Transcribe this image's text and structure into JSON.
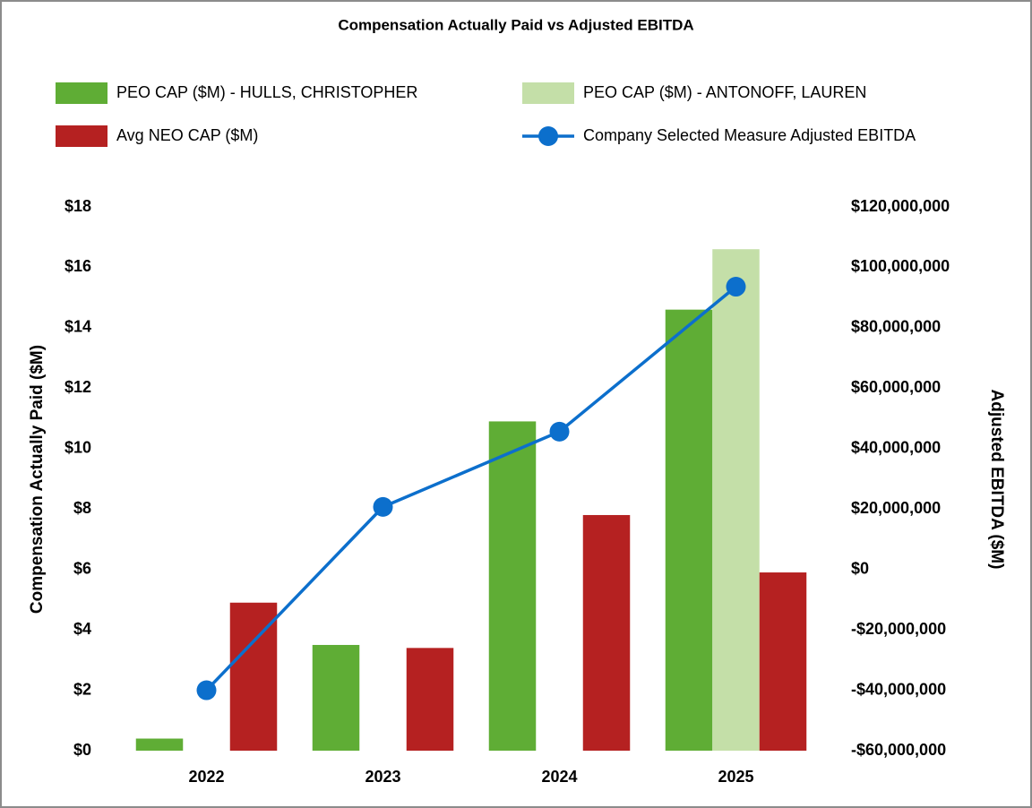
{
  "chart_data": {
    "type": "bar",
    "title": "Compensation Actually Paid vs Adjusted EBITDA",
    "y_label": "Compensation Actually Paid ($M)",
    "y2_label": "Adjusted EBITDA ($M)",
    "categories": [
      "2022",
      "2023",
      "2024",
      "2025"
    ],
    "series": [
      {
        "name": "PEO CAP ($M) - HULLS, CHRISTOPHER",
        "type": "bar",
        "color": "#5fad35",
        "values": [
          0.4,
          3.5,
          10.9,
          14.6
        ]
      },
      {
        "name": "PEO CAP ($M) - ANTONOFF, LAUREN",
        "type": "bar",
        "color": "#c4dfa8",
        "values": [
          null,
          null,
          null,
          16.6
        ]
      },
      {
        "name": "Avg NEO CAP ($M)",
        "type": "bar",
        "color": "#b52121",
        "values": [
          4.9,
          3.4,
          7.8,
          5.9
        ]
      },
      {
        "name": "Company Selected Measure Adjusted EBITDA",
        "type": "line",
        "axis": "y2",
        "color": "#0c6fcc",
        "values": [
          -40000000,
          20700000,
          45600000,
          93600000
        ]
      }
    ],
    "ylim": [
      0,
      18
    ],
    "yticks": [
      {
        "value": 0,
        "label": "$0"
      },
      {
        "value": 2,
        "label": "$2"
      },
      {
        "value": 4,
        "label": "$4"
      },
      {
        "value": 6,
        "label": "$6"
      },
      {
        "value": 8,
        "label": "$8"
      },
      {
        "value": 10,
        "label": "$10"
      },
      {
        "value": 12,
        "label": "$12"
      },
      {
        "value": 14,
        "label": "$14"
      },
      {
        "value": 16,
        "label": "$16"
      },
      {
        "value": 18,
        "label": "$18"
      }
    ],
    "y2lim": [
      -60000000,
      120000000
    ],
    "y2ticks": [
      {
        "value": -60000000,
        "label": "-$60,000,000"
      },
      {
        "value": -40000000,
        "label": "-$40,000,000"
      },
      {
        "value": -20000000,
        "label": "-$20,000,000"
      },
      {
        "value": 0,
        "label": "$0"
      },
      {
        "value": 20000000,
        "label": "$20,000,000"
      },
      {
        "value": 40000000,
        "label": "$40,000,000"
      },
      {
        "value": 60000000,
        "label": "$60,000,000"
      },
      {
        "value": 80000000,
        "label": "$80,000,000"
      },
      {
        "value": 100000000,
        "label": "$100,000,000"
      },
      {
        "value": 120000000,
        "label": "$120,000,000"
      }
    ],
    "grid": false,
    "legend": "top"
  }
}
